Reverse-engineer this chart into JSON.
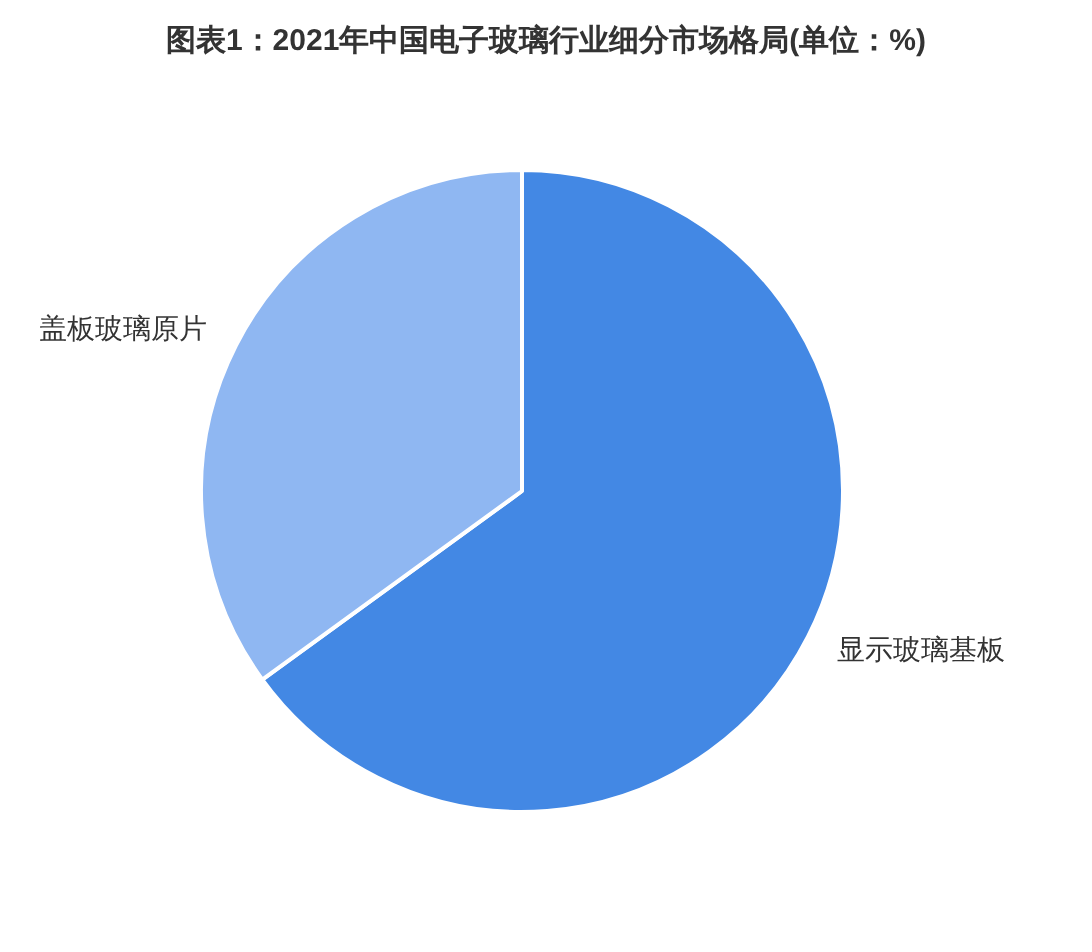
{
  "chart_data": {
    "type": "pie",
    "title": "图表1：2021年中国电子玻璃行业细分市场格局(单位：%)",
    "categories": [
      "显示玻璃基板",
      "盖板玻璃原片"
    ],
    "values": [
      65,
      35
    ],
    "colors": [
      "#4388e4",
      "#8fb7f2"
    ]
  }
}
